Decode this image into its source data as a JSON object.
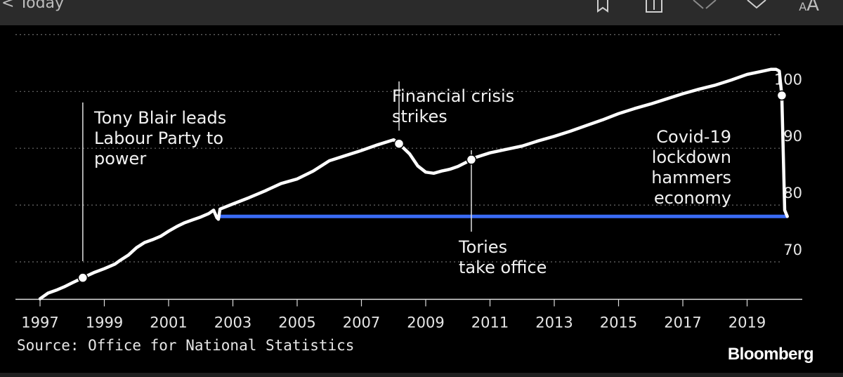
{
  "header": {
    "back_label": "< Today",
    "icons": [
      "bookmark-icon",
      "share-icon",
      "close-icon",
      "chevron-down-icon"
    ],
    "text_size_small": "A",
    "text_size_large": "A"
  },
  "source": "Source: Office for National Statistics",
  "brand": "Bloomberg",
  "chart_data": {
    "type": "line",
    "title": "",
    "xlabel": "",
    "ylabel": "",
    "xlim": [
      1996.8,
      2021.6
    ],
    "ylim": [
      62,
      108
    ],
    "x_ticks": [
      1997,
      1999,
      2001,
      2003,
      2005,
      2007,
      2009,
      2011,
      2013,
      2015,
      2017,
      2019
    ],
    "x_tick_labels": [
      "1997",
      "1999",
      "2001",
      "2003",
      "2005",
      "2007",
      "2009",
      "2011",
      "2013",
      "2015",
      "2017",
      "2019"
    ],
    "y_ticks": [
      70,
      80,
      90,
      100
    ],
    "y_tick_labels": [
      "70",
      "80",
      "90",
      "100"
    ],
    "gridlines": [
      69,
      79,
      89,
      99,
      109
    ],
    "y_axis_side": "right",
    "grid": true,
    "series": [
      {
        "color": "#ffffff",
        "x": [
          1997.0,
          1997.25,
          1997.5,
          1997.75,
          1998.0,
          1998.33,
          1998.67,
          1999.0,
          1999.33,
          1999.5,
          1999.75,
          2000.0,
          2000.25,
          2000.5,
          2000.75,
          2001.0,
          2001.25,
          2001.5,
          2001.75,
          2002.0,
          2002.25,
          2002.4,
          2002.5,
          2002.55,
          2002.6,
          2003.0,
          2003.5,
          2004.0,
          2004.5,
          2005.0,
          2005.5,
          2006.0,
          2006.5,
          2007.0,
          2007.5,
          2008.0,
          2008.17,
          2008.5,
          2008.75,
          2009.0,
          2009.25,
          2009.5,
          2009.75,
          2010.0,
          2010.25,
          2010.5,
          2011.0,
          2011.5,
          2012.0,
          2012.5,
          2013.0,
          2013.5,
          2014.0,
          2014.5,
          2015.0,
          2015.5,
          2016.0,
          2016.5,
          2017.0,
          2017.5,
          2018.0,
          2018.5,
          2019.0,
          2019.5,
          2019.75,
          2019.9,
          2020.0,
          2020.08,
          2020.17,
          2020.25
        ],
        "y": [
          62.5,
          63.5,
          64.0,
          64.6,
          65.3,
          66.2,
          67.1,
          67.8,
          68.6,
          69.3,
          70.2,
          71.5,
          72.4,
          72.9,
          73.5,
          74.4,
          75.2,
          75.9,
          76.4,
          76.9,
          77.5,
          78.1,
          76.8,
          76.5,
          78.3,
          79.2,
          80.3,
          81.5,
          82.8,
          83.6,
          85.0,
          86.8,
          87.7,
          88.6,
          89.6,
          90.5,
          89.8,
          88.0,
          85.9,
          84.8,
          84.6,
          85.0,
          85.3,
          85.8,
          86.5,
          87.3,
          88.2,
          88.8,
          89.4,
          90.3,
          91.1,
          92.0,
          93.0,
          94.0,
          95.1,
          96.0,
          96.8,
          97.7,
          98.6,
          99.4,
          100.1,
          101.0,
          102.0,
          102.6,
          102.9,
          102.9,
          102.6,
          98.3,
          78.1,
          77.0
        ],
        "label": ""
      }
    ],
    "reference_line": {
      "color": "#3a6bf5",
      "x": [
        2002.6,
        2020.25
      ],
      "y": 77.0
    },
    "markers": [
      {
        "x": 1998.33,
        "y": 66.2
      },
      {
        "x": 2008.17,
        "y": 89.8
      },
      {
        "x": 2010.42,
        "y": 87.0
      },
      {
        "x": 2020.08,
        "y": 98.3
      }
    ],
    "annotations": [
      {
        "lines": [
          "Tony Blair leads",
          "Labour Party to",
          "power"
        ],
        "x": 1998.33
      },
      {
        "lines": [
          "Financial crisis",
          "strikes"
        ],
        "x": 2008.17
      },
      {
        "lines": [
          "Tories",
          "take office"
        ],
        "x": 2010.42
      },
      {
        "lines": [
          "Covid-19",
          "lockdown",
          "hammers",
          "economy"
        ],
        "x": 2020.08
      }
    ]
  }
}
